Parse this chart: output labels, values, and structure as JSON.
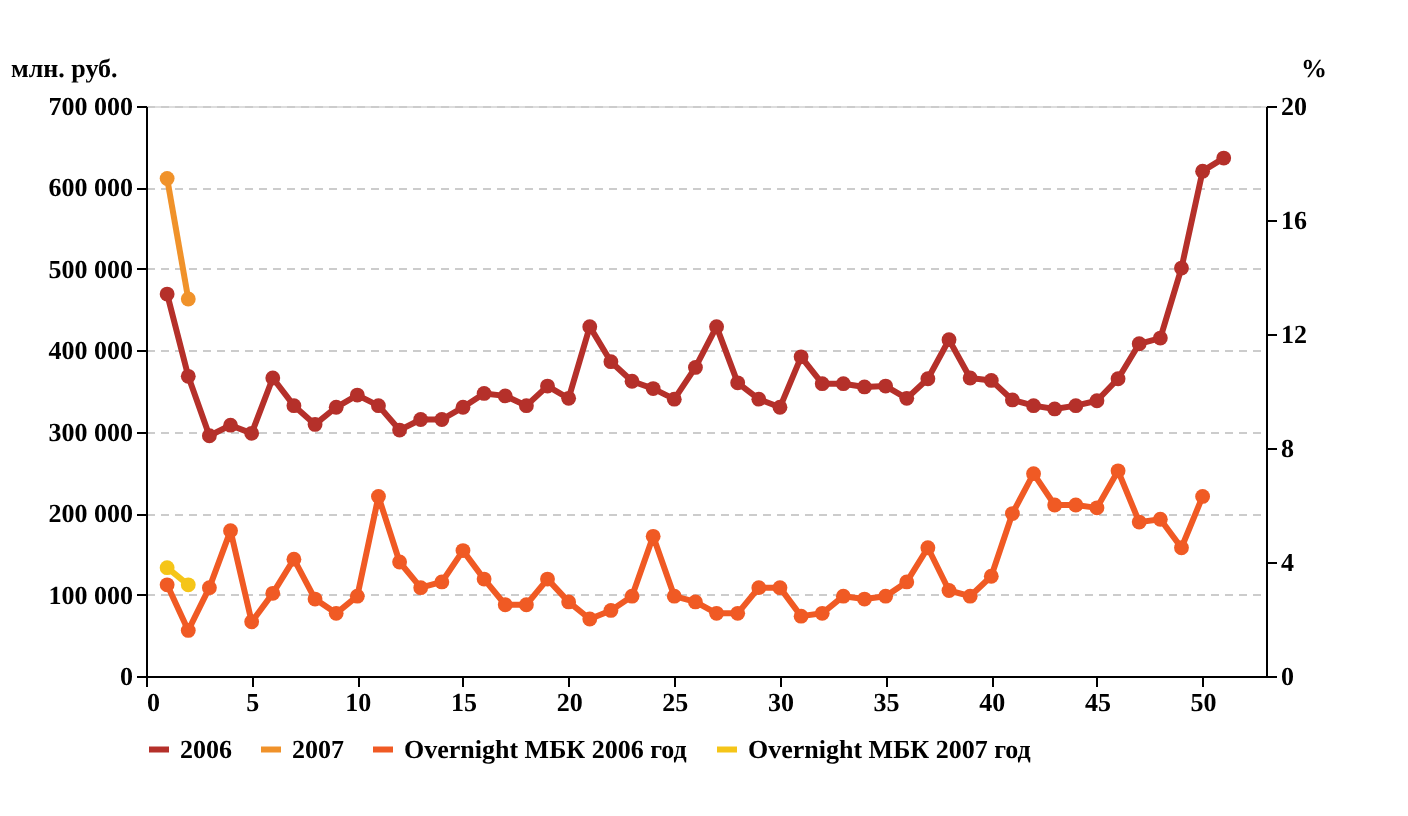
{
  "chart_data": {
    "type": "line",
    "ylabel": "млн. руб.",
    "y2label": "%",
    "x": [
      1,
      2,
      3,
      4,
      5,
      6,
      7,
      8,
      9,
      10,
      11,
      12,
      13,
      14,
      15,
      16,
      17,
      18,
      19,
      20,
      21,
      22,
      23,
      24,
      25,
      26,
      27,
      28,
      29,
      30,
      31,
      32,
      33,
      34,
      35,
      36,
      37,
      38,
      39,
      40,
      41,
      42,
      43,
      44,
      45,
      46,
      47,
      48,
      49,
      50,
      51
    ],
    "xlim": [
      0,
      53
    ],
    "xticks": [
      0,
      5,
      10,
      15,
      20,
      25,
      30,
      35,
      40,
      45,
      50
    ],
    "ylim": [
      0,
      700000
    ],
    "yticks": [
      {
        "value": 0,
        "label": "0"
      },
      {
        "value": 100000,
        "label": "100 000"
      },
      {
        "value": 200000,
        "label": "200 000"
      },
      {
        "value": 300000,
        "label": "300 000"
      },
      {
        "value": 400000,
        "label": "400 000"
      },
      {
        "value": 500000,
        "label": "500 000"
      },
      {
        "value": 600000,
        "label": "600 000"
      },
      {
        "value": 700000,
        "label": "700 000"
      }
    ],
    "y2lim": [
      0,
      20
    ],
    "y2ticks": [
      0,
      4,
      8,
      12,
      16,
      20
    ],
    "grid": "y",
    "legend": "bottom",
    "marker": "circle",
    "line_style": "solid",
    "series": [
      {
        "name": "2006",
        "color": "#b5302a",
        "values": [
          469000,
          368000,
          295000,
          308000,
          298000,
          366000,
          332000,
          309000,
          330000,
          345000,
          332000,
          302000,
          315000,
          315000,
          330000,
          347000,
          344000,
          332000,
          356000,
          341000,
          429000,
          386000,
          362000,
          353000,
          340000,
          379000,
          429000,
          360000,
          340000,
          330000,
          392000,
          359000,
          359000,
          355000,
          356000,
          341000,
          365000,
          413000,
          366000,
          363000,
          339000,
          332000,
          328000,
          332000,
          338000,
          365000,
          408000,
          415000,
          501000,
          620000,
          636000
        ]
      },
      {
        "name": "2007",
        "color": "#f0922a",
        "x": [
          1,
          2
        ],
        "values": [
          611000,
          463000
        ]
      },
      {
        "name": "Overnight МБК 2006 год",
        "color": "#f05a24",
        "axis": "y2",
        "x": [
          1,
          2,
          3,
          4,
          5,
          6,
          7,
          8,
          9,
          10,
          11,
          12,
          13,
          14,
          15,
          16,
          17,
          18,
          19,
          20,
          21,
          22,
          23,
          24,
          25,
          26,
          27,
          28,
          29,
          30,
          31,
          32,
          33,
          34,
          35,
          36,
          37,
          38,
          39,
          40,
          41,
          42,
          43,
          44,
          45,
          46,
          47,
          48,
          49,
          50
        ],
        "values": [
          3.2,
          1.6,
          3.1,
          5.1,
          1.9,
          2.9,
          4.1,
          2.7,
          2.2,
          2.8,
          6.3,
          4.0,
          3.1,
          3.3,
          4.4,
          3.4,
          2.5,
          2.5,
          3.4,
          2.6,
          2.0,
          2.3,
          2.8,
          4.9,
          2.8,
          2.6,
          2.2,
          2.2,
          3.1,
          3.1,
          2.1,
          2.2,
          2.8,
          2.7,
          2.8,
          3.3,
          4.5,
          3.0,
          2.8,
          3.5,
          5.7,
          7.1,
          6.0,
          6.0,
          5.9,
          7.2,
          5.4,
          5.5,
          4.5,
          6.3
        ]
      },
      {
        "name": "Overnight МБК 2007 год",
        "color": "#f5c518",
        "axis": "y2",
        "x": [
          1,
          2
        ],
        "values": [
          3.8,
          3.2
        ]
      }
    ]
  }
}
